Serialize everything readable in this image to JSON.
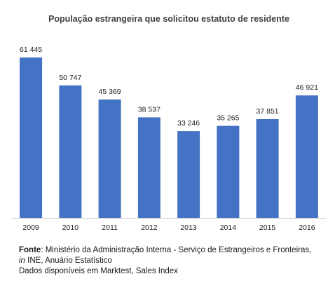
{
  "chart_data": {
    "type": "bar",
    "title": "População estrangeira que solicitou estatuto de residente",
    "categories": [
      "2009",
      "2010",
      "2011",
      "2012",
      "2013",
      "2014",
      "2015",
      "2016"
    ],
    "values": [
      61445,
      50747,
      45369,
      38537,
      33246,
      35265,
      37851,
      46921
    ],
    "value_labels": [
      "61 445",
      "50 747",
      "45 369",
      "38 537",
      "33 246",
      "35 265",
      "37 851",
      "46 921"
    ],
    "xlabel": "",
    "ylabel": "",
    "ylim": [
      0,
      62000
    ],
    "grid": false,
    "bar_color": "#4472C4",
    "axis_color": "#d0d0d0"
  },
  "source": {
    "label": "Fonte",
    "text": ": Ministério da Administração Interna - Serviço de Estrangeiros e Fronteiras,",
    "in_word": "in",
    "publication": " INE, Anuário Estatístico",
    "availability": "Dados disponíveis em Marktest, Sales Index"
  }
}
